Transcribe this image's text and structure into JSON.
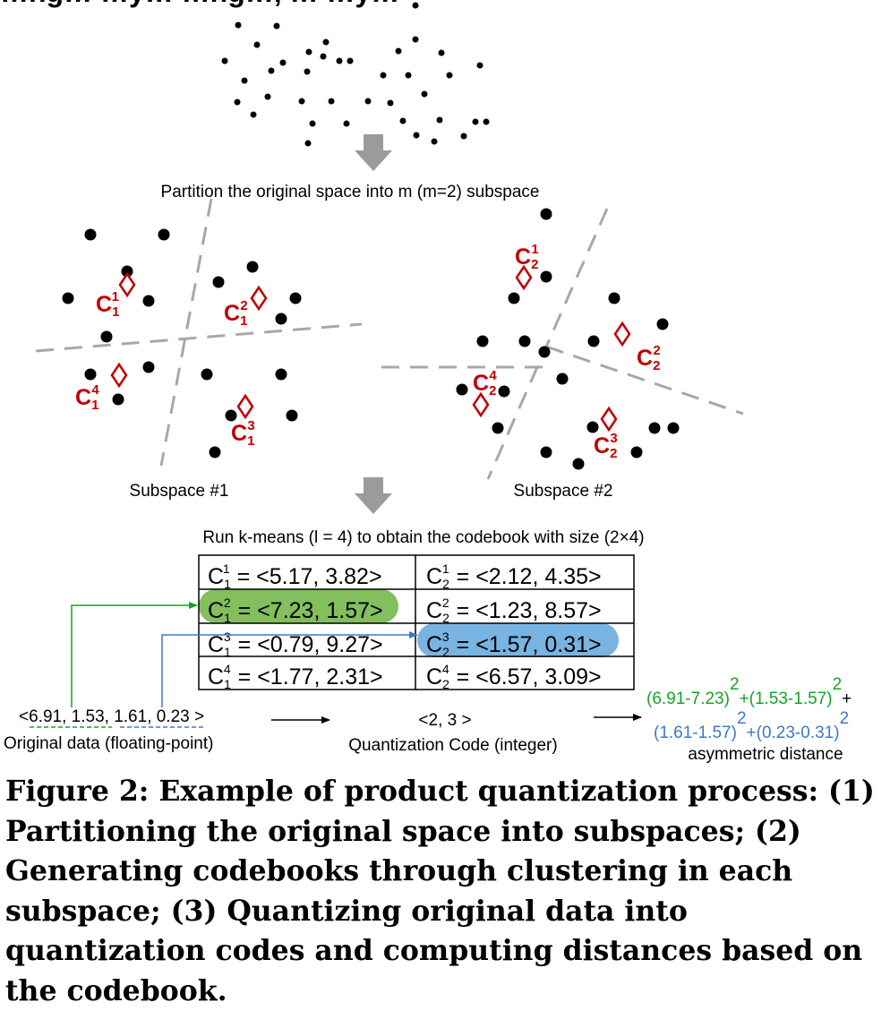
{
  "top_partial_text": "…ng… …y… …ng…, … …y…",
  "step1_label": "Partition the original space into m (m=2) subspace",
  "subspace1_label": "Subspace #1",
  "subspace2_label": "Subspace #2",
  "step2_label": "Run k-means (l = 4) to obtain the codebook with size (2×4)",
  "centroid_letter": "C",
  "codebook": {
    "rows": [
      {
        "s1_sub": "1",
        "s1_sup": "1",
        "s1_vec": "= <5.17, 3.82>",
        "s2_sub": "2",
        "s2_sup": "1",
        "s2_vec": "= <2.12, 4.35>"
      },
      {
        "s1_sub": "1",
        "s1_sup": "2",
        "s1_vec": "= <7.23, 1.57>",
        "s2_sub": "2",
        "s2_sup": "2",
        "s2_vec": "= <1.23, 8.57>"
      },
      {
        "s1_sub": "1",
        "s1_sup": "3",
        "s1_vec": "= <0.79, 9.27>",
        "s2_sub": "2",
        "s2_sup": "3",
        "s2_vec": "= <1.57, 0.31>"
      },
      {
        "s1_sub": "1",
        "s1_sup": "4",
        "s1_vec": "= <1.77, 2.31>",
        "s2_sub": "2",
        "s2_sup": "4",
        "s2_vec": "= <6.57, 3.09>"
      }
    ],
    "highlight_green_color": "#83bf5d",
    "highlight_blue_color": "#78b3e1"
  },
  "original_data": {
    "open": "<",
    "v1": "6.91",
    "sep1": ", ",
    "v2": "1.53",
    "sep2": ", ",
    "v3": "1.61",
    "rest": ", 0.23 >",
    "label": "Original data (floating-point)"
  },
  "quant_code": {
    "value": "<2, 3 >",
    "label": "Quantization Code (integer)"
  },
  "distance": {
    "term1": "(6.91-7.23)",
    "plus1": "+(1.53-1.57)",
    "plus_end": "+",
    "term2": "(1.61-1.57)",
    "plus2": "+(0.23-0.31)",
    "exp": "2",
    "label": "asymmetric distance"
  },
  "centroid_color": "#c00000",
  "green_color": "#17a325",
  "blue_color": "#3d78c8",
  "caption": "Figure 2: Example of product quantization process: (1) Partitioning the original space into subspaces; (2) Generating codebooks through clustering in each subspace; (3) Quantizing original data into quantization codes and computing distances based on the codebook."
}
